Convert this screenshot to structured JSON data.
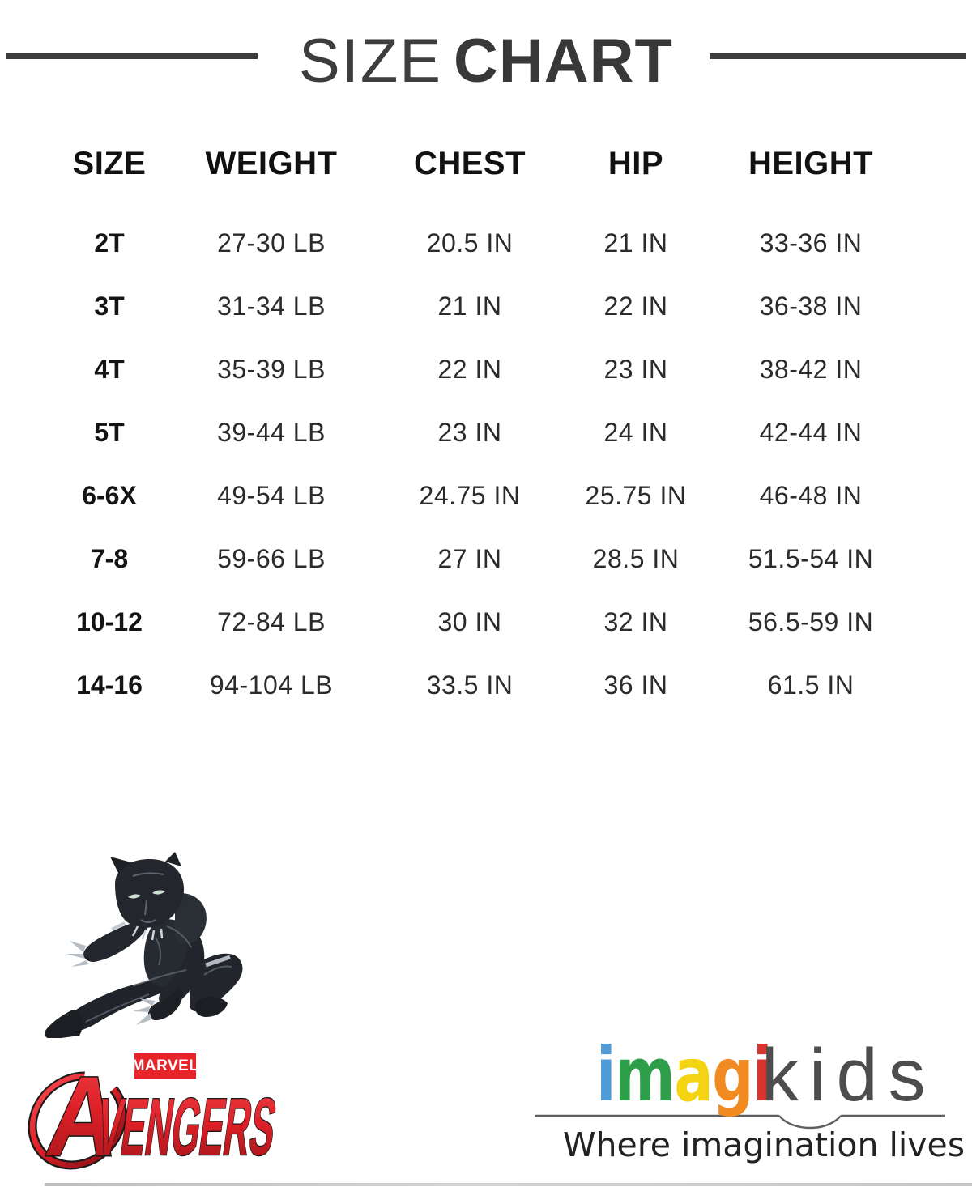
{
  "title": {
    "light": "SIZE",
    "bold": "CHART",
    "rule_color": "#3d3d3d"
  },
  "table": {
    "headers": [
      "SIZE",
      "WEIGHT",
      "CHEST",
      "HIP",
      "HEIGHT"
    ],
    "rows": [
      [
        "2T",
        "27-30 LB",
        "20.5 IN",
        "21 IN",
        "33-36 IN"
      ],
      [
        "3T",
        "31-34 LB",
        "21 IN",
        "22 IN",
        "36-38 IN"
      ],
      [
        "4T",
        "35-39 LB",
        "22 IN",
        "23 IN",
        "38-42 IN"
      ],
      [
        "5T",
        "39-44 LB",
        "23 IN",
        "24 IN",
        "42-44 IN"
      ],
      [
        "6-6X",
        "49-54 LB",
        "24.75 IN",
        "25.75 IN",
        "46-48 IN"
      ],
      [
        "7-8",
        "59-66 LB",
        "27 IN",
        "28.5 IN",
        "51.5-54 IN"
      ],
      [
        "10-12",
        "72-84 LB",
        "30 IN",
        "32 IN",
        "56.5-59 IN"
      ],
      [
        "14-16",
        "94-104 LB",
        "33.5 IN",
        "36 IN",
        "61.5 IN"
      ]
    ]
  },
  "branding": {
    "marvel_label": "MARVEL",
    "avengers": {
      "first_letter": "A",
      "rest": "VENGERS",
      "red": "#e62429"
    },
    "black_panther_icon": "black-panther-figure",
    "imagikids": {
      "letters": [
        {
          "char": "i",
          "color": "#4f9cd8"
        },
        {
          "char": "m",
          "color": "#2f9e4b"
        },
        {
          "char": "a",
          "color": "#f4d412"
        },
        {
          "char": "g",
          "color": "#f08a21"
        },
        {
          "char": "i",
          "color": "#d8332e"
        }
      ],
      "kids": "kids",
      "kids_color": "#4d4d4d",
      "line_color": "#5f5f5f",
      "tagline": "Where imagination lives"
    }
  }
}
